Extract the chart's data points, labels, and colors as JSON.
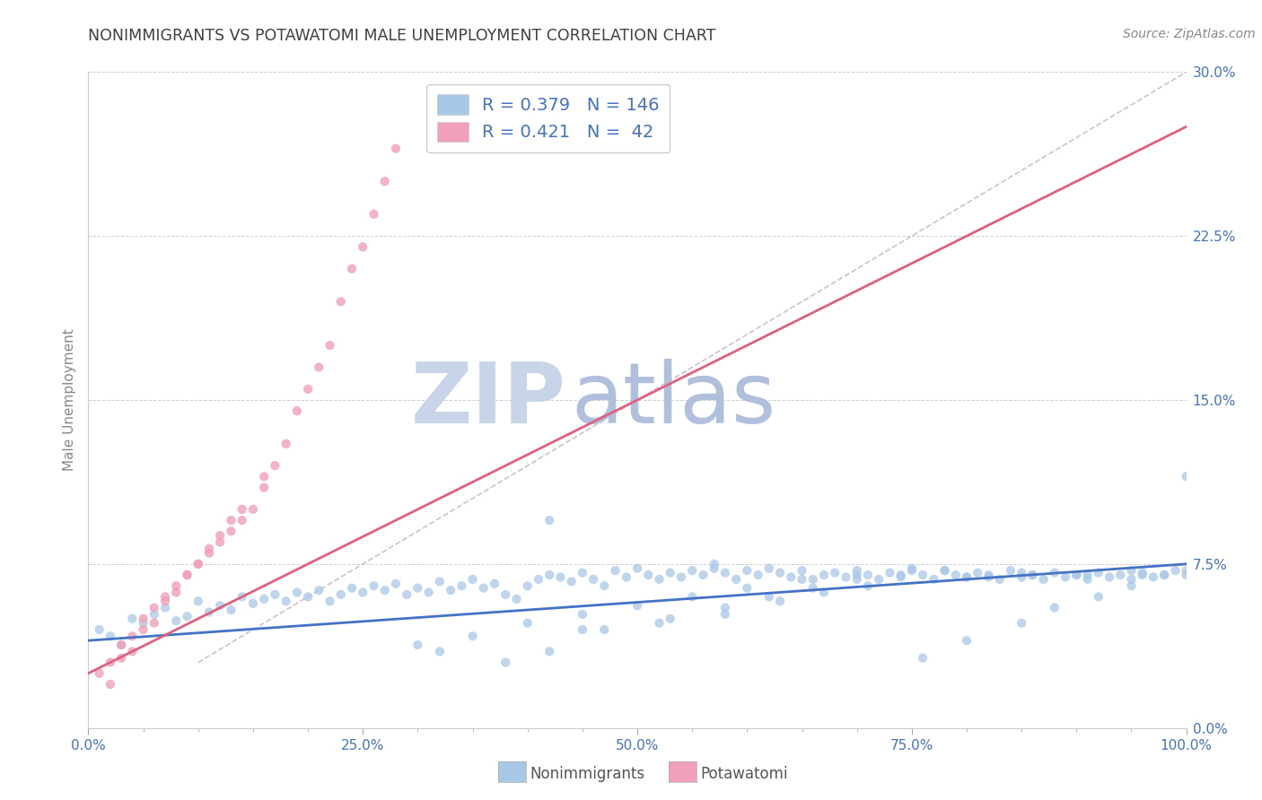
{
  "title": "NONIMMIGRANTS VS POTAWATOMI MALE UNEMPLOYMENT CORRELATION CHART",
  "source_text": "Source: ZipAtlas.com",
  "ylabel": "Male Unemployment",
  "ylabel_right_ticks": [
    "0.0%",
    "7.5%",
    "15.0%",
    "22.5%",
    "30.0%"
  ],
  "ylabel_right_values": [
    0.0,
    7.5,
    15.0,
    22.5,
    30.0
  ],
  "xlabel_ticks": [
    "0.0%",
    "",
    "",
    "",
    "",
    "25.0%",
    "",
    "",
    "",
    "",
    "50.0%",
    "",
    "",
    "",
    "",
    "75.0%",
    "",
    "",
    "",
    "",
    "100.0%"
  ],
  "xlabel_tick_pos": [
    0,
    5,
    10,
    15,
    20,
    25,
    30,
    35,
    40,
    45,
    50,
    55,
    60,
    65,
    70,
    75,
    80,
    85,
    90,
    95,
    100
  ],
  "xlim": [
    0.0,
    100.0
  ],
  "ylim": [
    0.0,
    30.0
  ],
  "blue_R": 0.379,
  "blue_N": 146,
  "pink_R": 0.421,
  "pink_N": 42,
  "blue_color": "#A8C8E8",
  "pink_color": "#F0A0B8",
  "blue_trend_color": "#4472C4",
  "pink_trend_color": "#E06080",
  "ref_line_color": "#C8B0C0",
  "grid_color": "#BBBBBB",
  "title_color": "#404040",
  "legend_text_color": "#4472C4",
  "tick_color": "#4472C4",
  "watermark_zip_color": "#C8D4E8",
  "watermark_atlas_color": "#B0C0DC",
  "legend_label1": "Nonimmigrants",
  "legend_label2": "Potawatomi",
  "blue_scatter_x": [
    1,
    2,
    3,
    4,
    5,
    6,
    7,
    8,
    9,
    10,
    11,
    12,
    13,
    14,
    15,
    16,
    17,
    18,
    19,
    20,
    21,
    22,
    23,
    24,
    25,
    26,
    27,
    28,
    29,
    30,
    31,
    32,
    33,
    34,
    35,
    36,
    37,
    38,
    39,
    40,
    41,
    42,
    43,
    44,
    45,
    46,
    47,
    48,
    49,
    50,
    51,
    52,
    53,
    54,
    55,
    56,
    57,
    58,
    59,
    60,
    61,
    62,
    63,
    64,
    65,
    66,
    67,
    68,
    69,
    70,
    71,
    72,
    73,
    74,
    75,
    76,
    77,
    78,
    79,
    80,
    81,
    82,
    83,
    84,
    85,
    86,
    87,
    88,
    89,
    90,
    91,
    92,
    93,
    94,
    95,
    96,
    97,
    98,
    99,
    100,
    32,
    45,
    52,
    58,
    63,
    67,
    71,
    76,
    80,
    85,
    88,
    92,
    95,
    98,
    30,
    35,
    40,
    45,
    50,
    55,
    60,
    65,
    70,
    75,
    80,
    85,
    90,
    95,
    100,
    38,
    42,
    47,
    53,
    58,
    62,
    66,
    70,
    74,
    78,
    82,
    86,
    91,
    96,
    100,
    42,
    57
  ],
  "blue_scatter_y": [
    4.5,
    4.2,
    3.8,
    5.0,
    4.8,
    5.2,
    5.5,
    4.9,
    5.1,
    5.8,
    5.3,
    5.6,
    5.4,
    6.0,
    5.7,
    5.9,
    6.1,
    5.8,
    6.2,
    6.0,
    6.3,
    5.8,
    6.1,
    6.4,
    6.2,
    6.5,
    6.3,
    6.6,
    6.1,
    6.4,
    6.2,
    6.7,
    6.3,
    6.5,
    6.8,
    6.4,
    6.6,
    6.1,
    5.9,
    6.5,
    6.8,
    7.0,
    6.9,
    6.7,
    7.1,
    6.8,
    6.5,
    7.2,
    6.9,
    7.3,
    7.0,
    6.8,
    7.1,
    6.9,
    7.2,
    7.0,
    7.3,
    7.1,
    6.8,
    7.2,
    7.0,
    7.3,
    7.1,
    6.9,
    7.2,
    6.8,
    7.0,
    7.1,
    6.9,
    7.2,
    7.0,
    6.8,
    7.1,
    6.9,
    7.3,
    7.0,
    6.8,
    7.2,
    7.0,
    6.9,
    7.1,
    7.0,
    6.8,
    7.2,
    6.9,
    7.0,
    6.8,
    7.1,
    6.9,
    7.0,
    6.8,
    7.1,
    6.9,
    7.0,
    6.8,
    7.1,
    6.9,
    7.0,
    7.2,
    7.0,
    3.5,
    4.5,
    4.8,
    5.2,
    5.8,
    6.2,
    6.5,
    3.2,
    4.0,
    4.8,
    5.5,
    6.0,
    6.5,
    7.0,
    3.8,
    4.2,
    4.8,
    5.2,
    5.6,
    6.0,
    6.4,
    6.8,
    7.0,
    7.2,
    6.9,
    7.1,
    7.0,
    7.2,
    11.5,
    3.0,
    3.5,
    4.5,
    5.0,
    5.5,
    6.0,
    6.4,
    6.8,
    7.0,
    7.2,
    6.9,
    7.0,
    7.0,
    7.0,
    7.2,
    9.5,
    7.5
  ],
  "pink_scatter_x": [
    1,
    2,
    3,
    4,
    5,
    6,
    7,
    8,
    9,
    10,
    11,
    12,
    13,
    14,
    15,
    16,
    17,
    18,
    19,
    20,
    21,
    22,
    23,
    24,
    25,
    26,
    27,
    28,
    2,
    4,
    6,
    8,
    10,
    12,
    14,
    16,
    3,
    5,
    7,
    9,
    11,
    13
  ],
  "pink_scatter_y": [
    2.5,
    3.0,
    3.8,
    4.2,
    5.0,
    5.5,
    6.0,
    6.5,
    7.0,
    7.5,
    8.0,
    8.5,
    9.0,
    9.5,
    10.0,
    11.0,
    12.0,
    13.0,
    14.5,
    15.5,
    16.5,
    17.5,
    19.5,
    21.0,
    22.0,
    23.5,
    25.0,
    26.5,
    2.0,
    3.5,
    4.8,
    6.2,
    7.5,
    8.8,
    10.0,
    11.5,
    3.2,
    4.5,
    5.8,
    7.0,
    8.2,
    9.5
  ],
  "blue_trend_x0": 0,
  "blue_trend_x1": 100,
  "blue_trend_y0": 4.0,
  "blue_trend_y1": 7.5,
  "pink_trend_x0": 0,
  "pink_trend_x1": 100,
  "pink_trend_y0": 2.5,
  "pink_trend_y1": 27.5,
  "ref_line_x0": 10,
  "ref_line_x1": 100,
  "ref_line_y0": 3.0,
  "ref_line_y1": 30.0
}
